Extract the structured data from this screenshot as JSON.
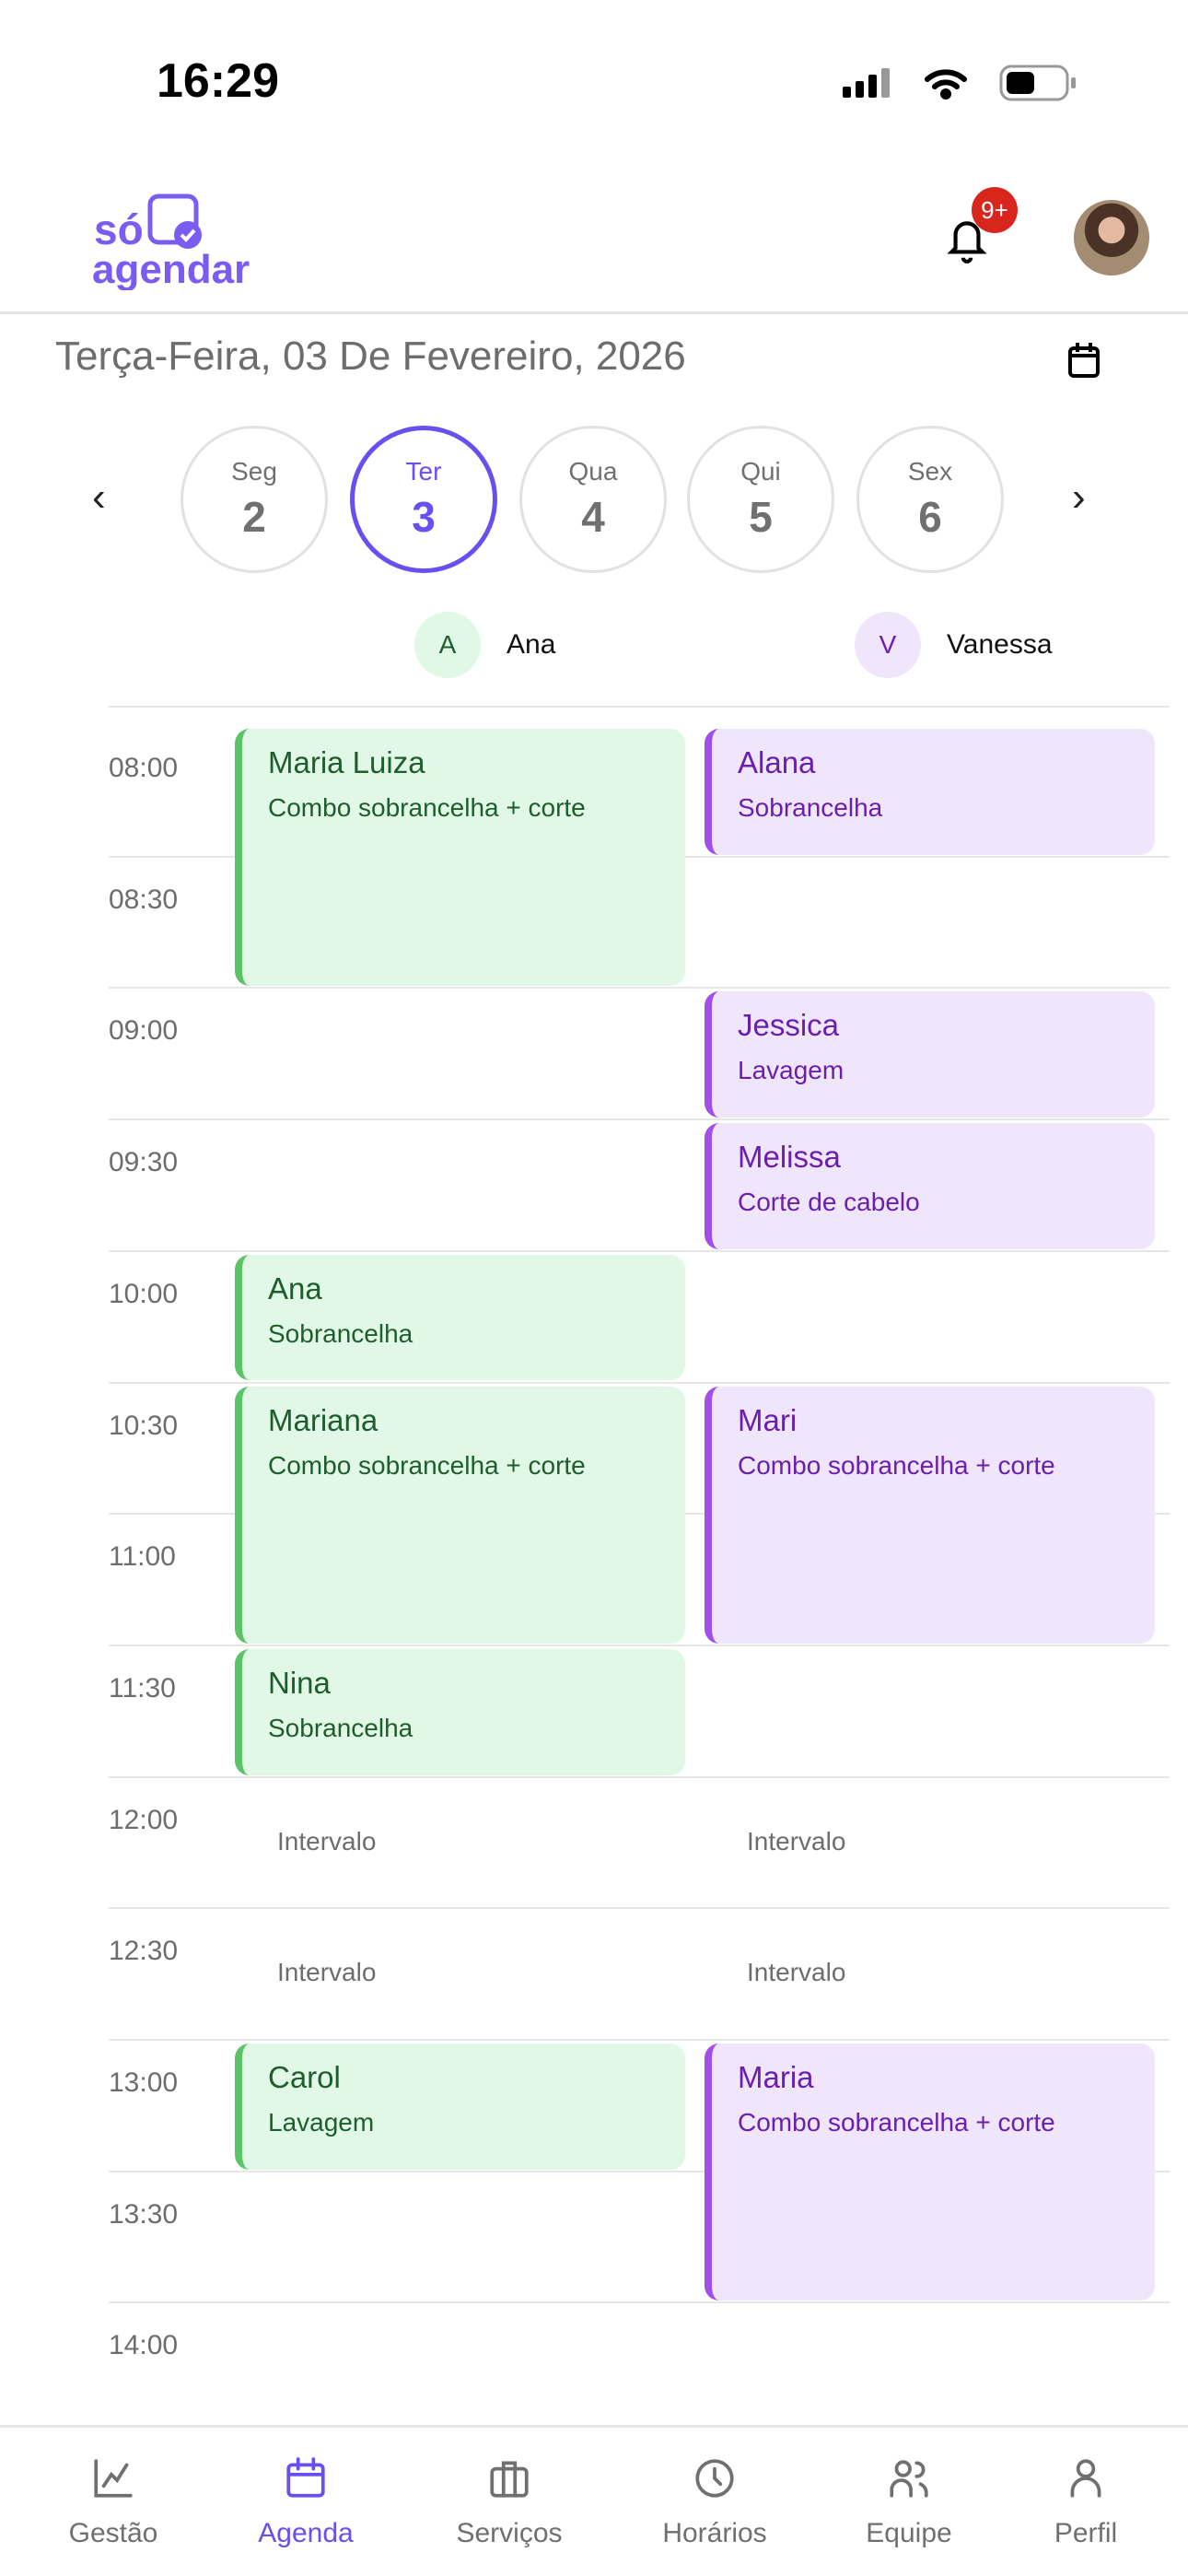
{
  "status_bar": {
    "time": "16:29"
  },
  "header": {
    "logo_text": "só agendar",
    "notification_badge": "9+",
    "brand_color": "#6a4ff0"
  },
  "date_title": "Terça-Feira, 03 De Fevereiro, 2026",
  "days": [
    {
      "name": "Seg",
      "num": "2",
      "selected": false
    },
    {
      "name": "Ter",
      "num": "3",
      "selected": true
    },
    {
      "name": "Qua",
      "num": "4",
      "selected": false
    },
    {
      "name": "Qui",
      "num": "5",
      "selected": false
    },
    {
      "name": "Sex",
      "num": "6",
      "selected": false
    }
  ],
  "staff": [
    {
      "initial": "A",
      "name": "Ana",
      "color": "#5cc466"
    },
    {
      "initial": "V",
      "name": "Vanessa",
      "color": "#a24fe8"
    }
  ],
  "times": [
    "08:00",
    "08:30",
    "09:00",
    "09:30",
    "10:00",
    "10:30",
    "11:00",
    "11:30",
    "12:00",
    "12:30",
    "13:00",
    "13:30",
    "14:00"
  ],
  "appointments": [
    {
      "staff": 0,
      "start": "08:00",
      "slots": 2,
      "client": "Maria Luiza",
      "service": "Combo sobrancelha + corte"
    },
    {
      "staff": 0,
      "start": "10:00",
      "slots": 1,
      "client": "Ana",
      "service": "Sobrancelha"
    },
    {
      "staff": 0,
      "start": "10:30",
      "slots": 2,
      "client": "Mariana",
      "service": "Combo sobrancelha + corte"
    },
    {
      "staff": 0,
      "start": "11:30",
      "slots": 1,
      "client": "Nina",
      "service": "Sobrancelha"
    },
    {
      "staff": 0,
      "start": "13:00",
      "slots": 1,
      "client": "Carol",
      "service": "Lavagem"
    },
    {
      "staff": 1,
      "start": "08:00",
      "slots": 1,
      "client": "Alana",
      "service": "Sobrancelha"
    },
    {
      "staff": 1,
      "start": "09:00",
      "slots": 1,
      "client": "Jessica",
      "service": "Lavagem"
    },
    {
      "staff": 1,
      "start": "09:30",
      "slots": 1,
      "client": "Melissa",
      "service": "Corte de cabelo"
    },
    {
      "staff": 1,
      "start": "10:30",
      "slots": 2,
      "client": "Mari",
      "service": "Combo sobrancelha + corte"
    },
    {
      "staff": 1,
      "start": "13:00",
      "slots": 2,
      "client": "Maria",
      "service": "Combo sobrancelha + corte"
    }
  ],
  "breaks": [
    {
      "staff": 0,
      "start": "12:00",
      "label": "Intervalo"
    },
    {
      "staff": 1,
      "start": "12:00",
      "label": "Intervalo"
    },
    {
      "staff": 0,
      "start": "12:30",
      "label": "Intervalo"
    },
    {
      "staff": 1,
      "start": "12:30",
      "label": "Intervalo"
    }
  ],
  "nav": [
    {
      "label": "Gestão",
      "icon": "chart-icon",
      "active": false
    },
    {
      "label": "Agenda",
      "icon": "calendar-icon",
      "active": true
    },
    {
      "label": "Serviços",
      "icon": "briefcase-icon",
      "active": false
    },
    {
      "label": "Horários",
      "icon": "clock-icon",
      "active": false
    },
    {
      "label": "Equipe",
      "icon": "team-icon",
      "active": false
    },
    {
      "label": "Perfil",
      "icon": "user-icon",
      "active": false
    }
  ]
}
